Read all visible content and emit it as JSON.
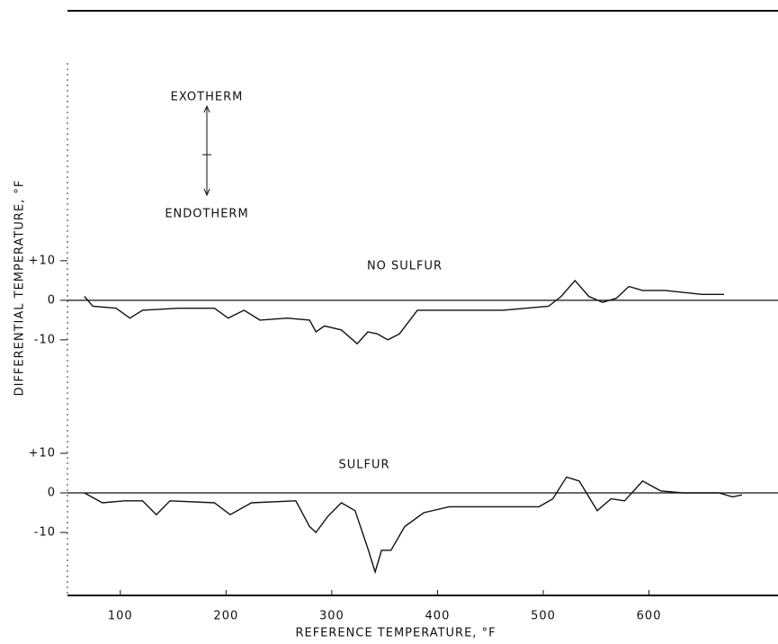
{
  "chart_data": [
    {
      "type": "line",
      "ylabel": "DIFFERENTIAL TEMPERATURE, °F",
      "annotations": [
        "EXOTHERM",
        "ENDOTHERM",
        "NO SULFUR"
      ],
      "color": "#111111",
      "xlim": [
        50,
        722
      ],
      "ylim": [
        -28,
        60
      ],
      "yticks": [
        {
          "value": 10,
          "label": "+10"
        },
        0,
        -10
      ],
      "x": [
        66,
        74,
        96,
        109,
        121,
        155,
        189,
        202,
        217,
        232,
        258,
        279,
        285,
        293,
        309,
        324,
        334,
        343,
        353,
        364,
        381,
        411,
        462,
        505,
        517,
        530,
        543,
        556,
        569,
        581,
        594,
        615,
        650,
        671
      ],
      "values": [
        1,
        -1.5,
        -2,
        -4.5,
        -2.5,
        -2,
        -2,
        -4.5,
        -2.5,
        -5,
        -4.5,
        -5,
        -8,
        -6.5,
        -7.5,
        -11,
        -8,
        -8.5,
        -10,
        -8.5,
        -2.5,
        -2.5,
        -2.5,
        -1.5,
        1,
        5,
        1,
        -0.5,
        0.5,
        3.5,
        2.5,
        2.5,
        1.5,
        1.5
      ]
    },
    {
      "type": "line",
      "xlabel": "REFERENCE TEMPERATURE, °F",
      "annotations": [
        "SULFUR"
      ],
      "color": "#111111",
      "xlim": [
        50,
        722
      ],
      "ylim": [
        -25,
        15
      ],
      "xticks": [
        100,
        200,
        300,
        400,
        500,
        600
      ],
      "yticks": [
        {
          "value": 10,
          "label": "+10"
        },
        0,
        -10
      ],
      "x": [
        66,
        83,
        104,
        121,
        134,
        147,
        189,
        204,
        224,
        266,
        279,
        285,
        296,
        309,
        322,
        334,
        341,
        347,
        356,
        369,
        387,
        411,
        496,
        509,
        522,
        534,
        551,
        564,
        577,
        594,
        611,
        632,
        666,
        679,
        688
      ],
      "values": [
        0,
        -2.5,
        -2,
        -2,
        -5.5,
        -2,
        -2.5,
        -5.5,
        -2.5,
        -2,
        -8.5,
        -10,
        -6,
        -2.5,
        -4.5,
        -14,
        -20,
        -14.5,
        -14.5,
        -8.5,
        -5,
        -3.5,
        -3.5,
        -1.5,
        4,
        3,
        -4.5,
        -1.5,
        -2,
        3,
        0.5,
        0,
        0,
        -1,
        -0.5
      ]
    }
  ]
}
